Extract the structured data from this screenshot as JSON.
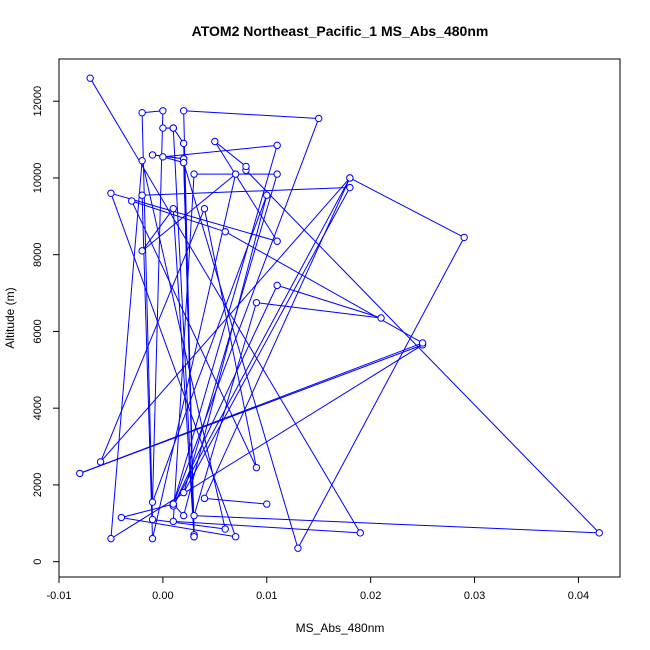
{
  "chart_data": {
    "type": "line",
    "title": "ATOM2 Northeast_Pacific_1 MS_Abs_480nm",
    "xlabel": "MS_Abs_480nm",
    "ylabel": "Altitude (m)",
    "xlim": [
      -0.01,
      0.044
    ],
    "ylim": [
      -400,
      13100
    ],
    "xticks": [
      -0.01,
      0.0,
      0.01,
      0.02,
      0.03,
      0.04
    ],
    "xtick_labels": [
      "-0.01",
      "0.00",
      "0.01",
      "0.02",
      "0.03",
      "0.04"
    ],
    "yticks": [
      0,
      2000,
      4000,
      6000,
      8000,
      10000,
      12000
    ],
    "ytick_labels": [
      "0",
      "2000",
      "4000",
      "6000",
      "8000",
      "10000",
      "12000"
    ],
    "grid": false,
    "legend": "none",
    "series": [
      {
        "color": "#0000ff",
        "marker": "open-circle",
        "points": [
          {
            "x": -0.007,
            "y": 12600
          },
          {
            "x": 0.019,
            "y": 750
          },
          {
            "x": 0.001,
            "y": 1050
          },
          {
            "x": 0.003,
            "y": 10100
          },
          {
            "x": 0.011,
            "y": 10100
          },
          {
            "x": 0.002,
            "y": 1800
          },
          {
            "x": 0.018,
            "y": 9750
          },
          {
            "x": -0.002,
            "y": 9550
          },
          {
            "x": -0.001,
            "y": 600
          },
          {
            "x": 0.007,
            "y": 10100
          },
          {
            "x": -0.002,
            "y": 8100
          },
          {
            "x": 0.001,
            "y": 9200
          },
          {
            "x": 0.003,
            "y": 650
          },
          {
            "x": 0.002,
            "y": 10500
          },
          {
            "x": -0.001,
            "y": 10600
          },
          {
            "x": 0.002,
            "y": 10500
          },
          {
            "x": 0.003,
            "y": 700
          },
          {
            "x": 0.001,
            "y": 11300
          },
          {
            "x": 0.0,
            "y": 11300
          },
          {
            "x": 0.001,
            "y": 11300
          },
          {
            "x": 0.001,
            "y": 11300
          },
          {
            "x": 0.002,
            "y": 10900
          },
          {
            "x": 0.003,
            "y": 650
          },
          {
            "x": 0.002,
            "y": 11750
          },
          {
            "x": 0.015,
            "y": 11550
          },
          {
            "x": 0.001,
            "y": 1500
          },
          {
            "x": 0.011,
            "y": 10850
          },
          {
            "x": 0.0,
            "y": 10550
          },
          {
            "x": 0.002,
            "y": 10400
          },
          {
            "x": 0.013,
            "y": 350
          },
          {
            "x": 0.029,
            "y": 8450
          },
          {
            "x": 0.018,
            "y": 10000
          },
          {
            "x": 0.001,
            "y": 1450
          },
          {
            "x": 0.011,
            "y": 7200
          },
          {
            "x": 0.021,
            "y": 6350
          },
          {
            "x": 0.009,
            "y": 6750
          },
          {
            "x": 0.003,
            "y": 1200
          },
          {
            "x": 0.042,
            "y": 750
          },
          {
            "x": 0.008,
            "y": 10200
          },
          {
            "x": 0.008,
            "y": 10300
          },
          {
            "x": 0.005,
            "y": 10950
          },
          {
            "x": 0.011,
            "y": 8350
          },
          {
            "x": -0.005,
            "y": 9600
          },
          {
            "x": 0.007,
            "y": 650
          },
          {
            "x": -0.004,
            "y": 1150
          },
          {
            "x": 0.001,
            "y": 1500
          },
          {
            "x": 0.002,
            "y": 1200
          },
          {
            "x": 0.01,
            "y": 9550
          },
          {
            "x": -0.001,
            "y": 1550
          },
          {
            "x": 0.0,
            "y": 11750
          },
          {
            "x": -0.002,
            "y": 11700
          },
          {
            "x": -0.001,
            "y": 1100
          },
          {
            "x": 0.006,
            "y": 850
          },
          {
            "x": -0.002,
            "y": 10450
          },
          {
            "x": -0.005,
            "y": 600
          },
          {
            "x": 0.025,
            "y": 5650
          },
          {
            "x": -0.008,
            "y": 2300
          },
          {
            "x": 0.025,
            "y": 5700
          },
          {
            "x": 0.006,
            "y": 8600
          },
          {
            "x": -0.003,
            "y": 9400
          },
          {
            "x": 0.009,
            "y": 2450
          },
          {
            "x": 0.004,
            "y": 9200
          },
          {
            "x": -0.006,
            "y": 2600
          },
          {
            "x": 0.018,
            "y": 10000
          },
          {
            "x": 0.004,
            "y": 1650
          },
          {
            "x": 0.01,
            "y": 1500
          }
        ]
      }
    ]
  }
}
